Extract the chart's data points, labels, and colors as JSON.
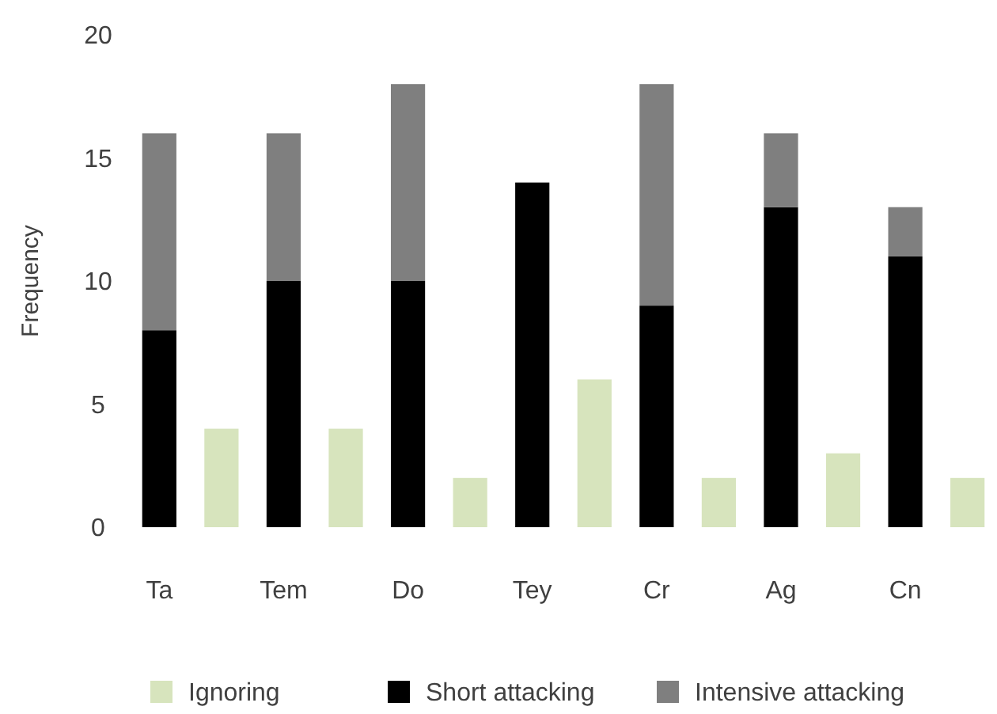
{
  "chart_data": {
    "type": "bar",
    "ylabel": "Frequency",
    "categories": [
      "Ta",
      null,
      "Tem",
      null,
      "Do",
      null,
      "Tey",
      null,
      "Cr",
      null,
      "Ag",
      null,
      "Cn",
      null
    ],
    "stacked": true,
    "ylim": [
      0,
      20
    ],
    "yticks": [
      0,
      5,
      10,
      15,
      20
    ],
    "grid": false,
    "legend": "bottom",
    "series": [
      {
        "name": "Ignoring",
        "color": "#d7e4bd",
        "values": [
          null,
          4,
          null,
          4,
          null,
          2,
          null,
          6,
          null,
          2,
          null,
          3,
          null,
          2
        ]
      },
      {
        "name": "Short attacking",
        "color": "#000000",
        "values": [
          8,
          null,
          10,
          null,
          10,
          null,
          14,
          null,
          9,
          null,
          13,
          null,
          11,
          null
        ]
      },
      {
        "name": "Intensive attacking",
        "color": "#7f7f7f",
        "values": [
          8,
          null,
          6,
          null,
          8,
          null,
          0,
          null,
          9,
          null,
          3,
          null,
          2,
          null
        ]
      }
    ]
  }
}
